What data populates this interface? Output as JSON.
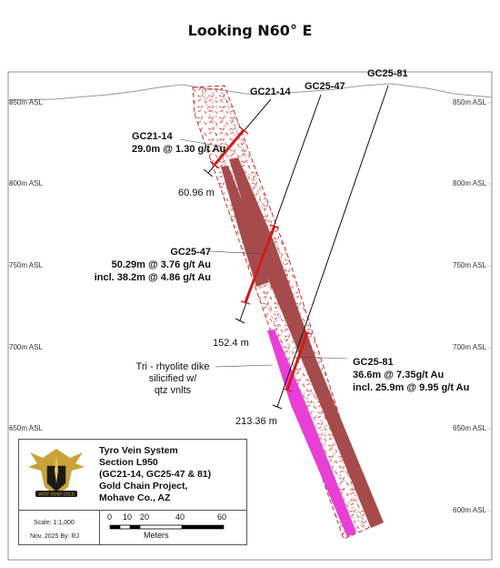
{
  "title": "Looking N60° E",
  "elevations": [
    "850m ASL",
    "800m ASL",
    "750m ASL",
    "700m ASL",
    "650m ASL",
    "600m ASL"
  ],
  "holes": {
    "gc21_14": {
      "name": "GC21-14",
      "callout": "GC21-14",
      "interval": "29.0m @ 1.30 g/t Au",
      "depth": "60.96 m"
    },
    "gc25_47": {
      "name": "GC25-47",
      "callout": "GC25-47",
      "interval": "50.29m @ 3.76 g/t Au",
      "incl": "incl. 38.2m @ 4.86 g/t Au",
      "depth": "152.4 m"
    },
    "gc25_81": {
      "name": "GC25-81",
      "callout": "GC25-81",
      "interval": "36.6m @ 7.35g/t Au",
      "incl": "incl. 25.9m @ 9.95 g/t Au",
      "depth": "213.36 m"
    }
  },
  "dike_label": [
    "Tri - rhyolite dike",
    "silicified w/",
    "qtz vnlts"
  ],
  "legend": {
    "lines": [
      "Tyro Vein System",
      "Section L950",
      "(GC21-14, GC25-47 & 81)",
      "Gold Chain Project,",
      "Mohave Co., AZ"
    ],
    "logo_text": "WEST POINT GOLD",
    "scale": "Scale: 1:1,000",
    "date_by": "Nov. 2025   By: RJ",
    "scale_ticks": [
      "0",
      "10",
      "20",
      "40",
      "60"
    ],
    "scale_unit": "Meters"
  },
  "colors": {
    "vein": "#a64b4b",
    "vein_dark": "#8c3a3a",
    "dike": "#e83fd6",
    "hole": "#111111",
    "assay": "#d11a1a",
    "breccia": "#d23a3a",
    "topo": "#9a9a9a"
  }
}
